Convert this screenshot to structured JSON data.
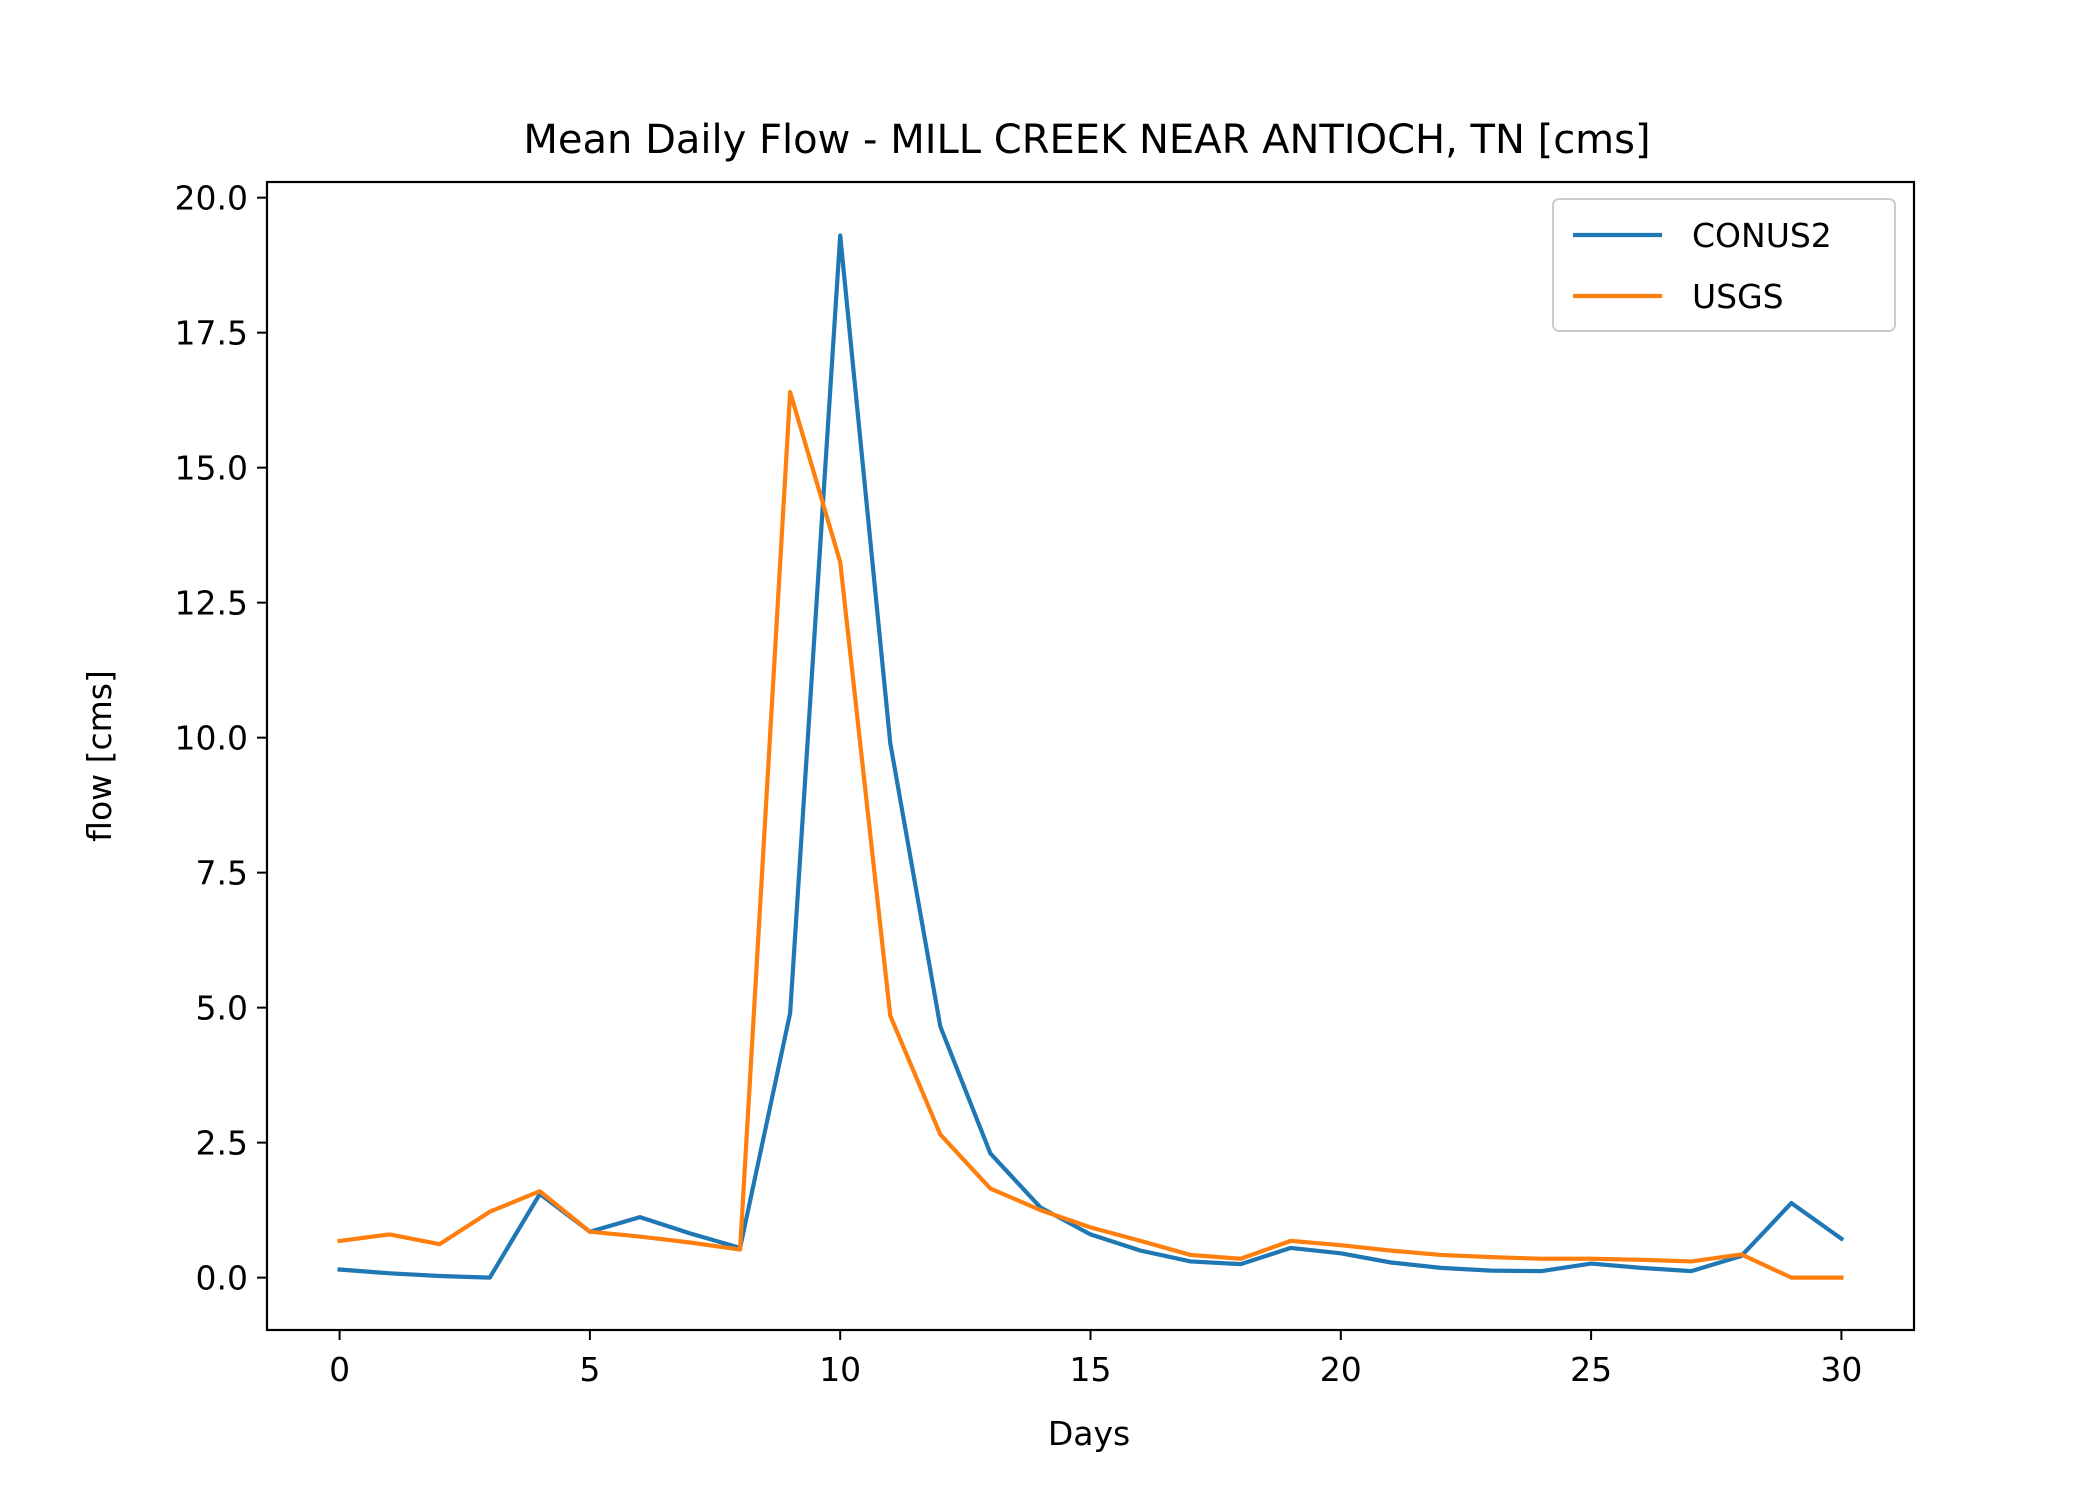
{
  "chart_data": {
    "type": "line",
    "title": "Mean Daily Flow - MILL CREEK NEAR ANTIOCH, TN [cms]",
    "xlabel": "Days",
    "ylabel": "flow [cms]",
    "xlim": [
      -1.45,
      31.45
    ],
    "ylim": [
      -0.97,
      20.29
    ],
    "xticks": [
      0,
      5,
      10,
      15,
      20,
      25,
      30
    ],
    "xtick_labels": [
      "0",
      "5",
      "10",
      "15",
      "20",
      "25",
      "30"
    ],
    "yticks": [
      0,
      2.5,
      5,
      7.5,
      10,
      12.5,
      15,
      17.5,
      20
    ],
    "ytick_labels": [
      "0.0",
      "2.5",
      "5.0",
      "7.5",
      "10.0",
      "12.5",
      "15.0",
      "17.5",
      "20.0"
    ],
    "grid": false,
    "legend_position": "top-right",
    "x": [
      0,
      1,
      2,
      3,
      4,
      5,
      6,
      7,
      8,
      9,
      10,
      11,
      12,
      13,
      14,
      15,
      16,
      17,
      18,
      19,
      20,
      21,
      22,
      23,
      24,
      25,
      26,
      27,
      28,
      29,
      30
    ],
    "series": [
      {
        "name": "CONUS2",
        "color": "#1f77b4",
        "values": [
          0.15,
          0.08,
          0.03,
          0.0,
          1.55,
          0.85,
          1.12,
          0.82,
          0.55,
          4.9,
          19.3,
          9.9,
          4.65,
          2.3,
          1.3,
          0.8,
          0.5,
          0.3,
          0.25,
          0.55,
          0.45,
          0.28,
          0.18,
          0.13,
          0.12,
          0.26,
          0.18,
          0.12,
          0.4,
          1.38,
          0.72
        ]
      },
      {
        "name": "USGS",
        "color": "#ff7f0e",
        "values": [
          0.68,
          0.8,
          0.62,
          1.22,
          1.6,
          0.85,
          0.76,
          0.65,
          0.52,
          16.4,
          13.25,
          4.85,
          2.65,
          1.65,
          1.25,
          0.93,
          0.68,
          0.42,
          0.35,
          0.68,
          0.6,
          0.5,
          0.42,
          0.38,
          0.35,
          0.35,
          0.33,
          0.3,
          0.43,
          0.0,
          0.0
        ]
      }
    ]
  }
}
